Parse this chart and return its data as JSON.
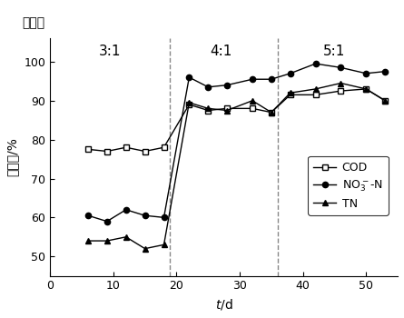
{
  "COD_x": [
    6,
    9,
    12,
    15,
    18,
    22,
    25,
    28,
    32,
    35,
    38,
    42,
    46,
    50,
    53
  ],
  "COD_y": [
    77.5,
    77.0,
    78.0,
    77.0,
    78.0,
    89.0,
    87.5,
    88.0,
    88.0,
    87.0,
    91.5,
    91.5,
    92.5,
    93.0,
    90.0
  ],
  "NO3N_x": [
    6,
    9,
    12,
    15,
    18,
    22,
    25,
    28,
    32,
    35,
    38,
    42,
    46,
    50,
    53
  ],
  "NO3N_y": [
    60.5,
    59.0,
    62.0,
    60.5,
    60.0,
    96.0,
    93.5,
    94.0,
    95.5,
    95.5,
    97.0,
    99.5,
    98.5,
    97.0,
    97.5
  ],
  "TN_x": [
    6,
    9,
    12,
    15,
    18,
    22,
    25,
    28,
    32,
    35,
    38,
    42,
    46,
    50,
    53
  ],
  "TN_y": [
    54.0,
    54.0,
    55.0,
    52.0,
    53.0,
    89.5,
    88.0,
    87.5,
    90.0,
    87.0,
    92.0,
    93.0,
    94.5,
    93.0,
    90.0
  ],
  "vline1_x": 19,
  "vline2_x": 36,
  "xlabel": "t/d",
  "ylabel": "去除率/%",
  "xlim": [
    0,
    55
  ],
  "ylim": [
    45,
    106
  ],
  "yticks": [
    50,
    60,
    70,
    80,
    90,
    100
  ],
  "xticks": [
    0,
    10,
    20,
    30,
    40,
    50
  ],
  "label_31": "3:1",
  "label_41": "4:1",
  "label_51": "5:1",
  "label_tansuobi": "碳氮比",
  "legend_COD": "COD",
  "legend_TN": "TN",
  "line_color": "#000000",
  "bg_color": "#ffffff"
}
